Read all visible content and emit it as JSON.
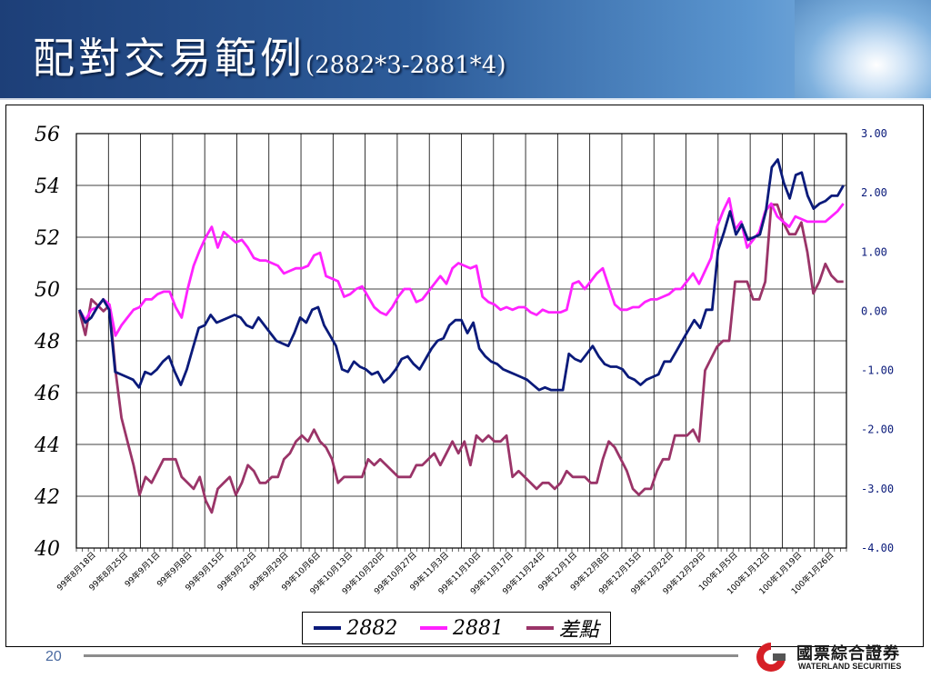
{
  "slide": {
    "title": "配對交易範例",
    "subtitle": "(2882*3-2881*4)",
    "page_number": "20"
  },
  "logo": {
    "name_cn": "國票綜合證券",
    "name_en": "WATERLAND SECURITIES"
  },
  "colors": {
    "s2882": "#0a1a7a",
    "s2881": "#ff22ff",
    "spread": "#9a3468",
    "banner": "#2d5c9a"
  },
  "chart_data": {
    "type": "line",
    "title": "",
    "left_axis": {
      "min": 40,
      "max": 56,
      "ticks": [
        "40",
        "42",
        "44",
        "46",
        "48",
        "50",
        "52",
        "54",
        "56"
      ]
    },
    "right_axis": {
      "min": -4,
      "max": 3,
      "ticks": [
        "-4.00",
        "-3.00",
        "-2.00",
        "-1.00",
        "0.00",
        "1.00",
        "2.00",
        "3.00"
      ]
    },
    "x_labels": [
      "99年8月18日",
      "99年8月25日",
      "99年9月1日",
      "99年9月8日",
      "99年9月15日",
      "99年9月22日",
      "99年9月29日",
      "99年10月6日",
      "99年10月13日",
      "99年10月20日",
      "99年10月27日",
      "99年11月3日",
      "99年11月10日",
      "99年11月17日",
      "99年11月24日",
      "99年12月1日",
      "99年12月8日",
      "99年12月15日",
      "99年12月22日",
      "99年12月29日",
      "100年1月5日",
      "100年1月12日",
      "100年1月19日",
      "100年1月26日"
    ],
    "grid": true,
    "legend_position": "bottom",
    "series": [
      {
        "name": "2882",
        "axis": "left",
        "color": "#0a1a7a",
        "values": [
          49.2,
          48.7,
          48.9,
          49.3,
          49.6,
          49.2,
          46.8,
          46.7,
          46.6,
          46.5,
          46.2,
          46.8,
          46.7,
          46.9,
          47.2,
          47.4,
          46.8,
          46.3,
          46.9,
          47.7,
          48.5,
          48.6,
          49.0,
          48.7,
          48.8,
          48.9,
          49.0,
          48.9,
          48.6,
          48.5,
          48.9,
          48.6,
          48.3,
          48.0,
          47.9,
          47.8,
          48.3,
          48.9,
          48.7,
          49.2,
          49.3,
          48.6,
          48.2,
          47.8,
          46.9,
          46.8,
          47.2,
          47.0,
          46.9,
          46.7,
          46.8,
          46.4,
          46.6,
          46.9,
          47.3,
          47.4,
          47.1,
          46.9,
          47.3,
          47.7,
          48.0,
          48.1,
          48.6,
          48.8,
          48.8,
          48.3,
          48.7,
          47.7,
          47.4,
          47.2,
          47.1,
          46.9,
          46.8,
          46.7,
          46.6,
          46.5,
          46.3,
          46.1,
          46.2,
          46.1,
          46.1,
          46.1,
          47.5,
          47.3,
          47.2,
          47.5,
          47.8,
          47.4,
          47.1,
          47.0,
          47.0,
          46.9,
          46.6,
          46.5,
          46.3,
          46.5,
          46.6,
          46.7,
          47.2,
          47.2,
          47.6,
          48.0,
          48.4,
          48.8,
          48.5,
          49.2,
          49.2,
          51.5,
          52.2,
          53.0,
          52.1,
          52.5,
          51.9,
          52.0,
          52.1,
          53.0,
          54.7,
          55.0,
          54.1,
          53.5,
          54.4,
          54.5,
          53.6,
          53.1,
          53.3,
          53.4,
          53.6,
          53.6,
          54.0
        ]
      },
      {
        "name": "2881",
        "axis": "left",
        "color": "#ff22ff",
        "values": [
          49.2,
          48.8,
          49.2,
          49.3,
          49.6,
          49.4,
          48.2,
          48.6,
          48.9,
          49.2,
          49.3,
          49.6,
          49.6,
          49.8,
          49.9,
          49.9,
          49.3,
          48.9,
          50.0,
          50.9,
          51.5,
          52.0,
          52.4,
          51.6,
          52.2,
          52.0,
          51.8,
          51.9,
          51.6,
          51.2,
          51.1,
          51.1,
          51.0,
          50.9,
          50.6,
          50.7,
          50.8,
          50.8,
          50.9,
          51.3,
          51.4,
          50.5,
          50.4,
          50.3,
          49.7,
          49.8,
          50.0,
          50.1,
          49.7,
          49.3,
          49.1,
          49.0,
          49.3,
          49.7,
          50.0,
          50.0,
          49.5,
          49.6,
          49.9,
          50.2,
          50.5,
          50.2,
          50.8,
          51.0,
          50.9,
          50.8,
          50.9,
          49.7,
          49.5,
          49.4,
          49.2,
          49.3,
          49.2,
          49.3,
          49.3,
          49.1,
          49.0,
          49.2,
          49.1,
          49.1,
          49.1,
          49.2,
          50.2,
          50.3,
          50.0,
          50.3,
          50.6,
          50.8,
          50.1,
          49.4,
          49.2,
          49.2,
          49.3,
          49.3,
          49.5,
          49.6,
          49.6,
          49.7,
          49.8,
          50.0,
          50.0,
          50.3,
          50.6,
          50.2,
          50.7,
          51.2,
          52.4,
          53.0,
          53.5,
          52.3,
          52.6,
          51.6,
          51.9,
          52.2,
          53.0,
          53.3,
          52.8,
          52.6,
          52.4,
          52.8,
          52.7,
          52.6,
          52.6,
          52.6,
          52.6,
          52.8,
          53.0,
          53.3
        ]
      },
      {
        "name": "差點",
        "axis": "right",
        "color": "#9a3468",
        "values": [
          0.0,
          -0.4,
          0.2,
          0.1,
          0.0,
          0.1,
          -1.0,
          -1.8,
          -2.2,
          -2.6,
          -3.1,
          -2.8,
          -2.9,
          -2.7,
          -2.5,
          -2.5,
          -2.5,
          -2.8,
          -2.9,
          -3.0,
          -2.8,
          -3.2,
          -3.4,
          -3.0,
          -2.9,
          -2.8,
          -3.1,
          -2.9,
          -2.6,
          -2.7,
          -2.9,
          -2.9,
          -2.8,
          -2.8,
          -2.5,
          -2.4,
          -2.2,
          -2.1,
          -2.2,
          -2.0,
          -2.2,
          -2.3,
          -2.5,
          -2.9,
          -2.8,
          -2.8,
          -2.8,
          -2.8,
          -2.5,
          -2.6,
          -2.5,
          -2.6,
          -2.7,
          -2.8,
          -2.8,
          -2.8,
          -2.6,
          -2.6,
          -2.5,
          -2.4,
          -2.6,
          -2.4,
          -2.2,
          -2.4,
          -2.2,
          -2.6,
          -2.1,
          -2.2,
          -2.1,
          -2.2,
          -2.2,
          -2.1,
          -2.8,
          -2.7,
          -2.8,
          -2.9,
          -3.0,
          -2.9,
          -2.9,
          -3.0,
          -2.9,
          -2.7,
          -2.8,
          -2.8,
          -2.8,
          -2.9,
          -2.9,
          -2.5,
          -2.2,
          -2.3,
          -2.5,
          -2.7,
          -3.0,
          -3.1,
          -3.0,
          -3.0,
          -2.7,
          -2.5,
          -2.5,
          -2.1,
          -2.1,
          -2.1,
          -2.0,
          -2.2,
          -1.0,
          -0.8,
          -0.6,
          -0.5,
          -0.5,
          0.5,
          0.5,
          0.5,
          0.2,
          0.2,
          0.5,
          1.8,
          1.8,
          1.5,
          1.3,
          1.3,
          1.5,
          1.0,
          0.3,
          0.5,
          0.8,
          0.6,
          0.5,
          0.5
        ]
      }
    ]
  }
}
